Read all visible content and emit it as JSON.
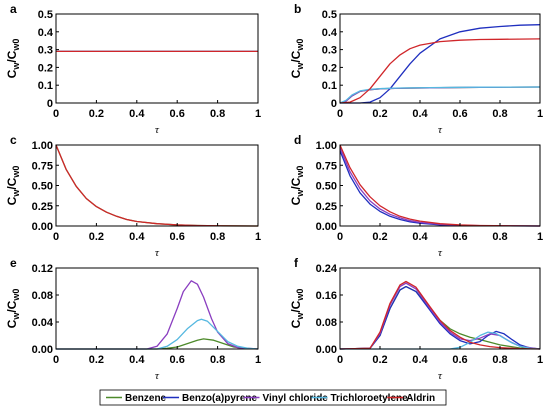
{
  "figure": {
    "legend": {
      "placement": "bottom",
      "entries": [
        {
          "name": "Benzene",
          "color": "#4d8a2a"
        },
        {
          "name": "Benzo(a)pyrene",
          "color": "#1f2fbf"
        },
        {
          "name": "Vinyl chloride",
          "color": "#8a3ec0"
        },
        {
          "name": "Trichloroetylene",
          "color": "#55b8e0"
        },
        {
          "name": "Aldrin",
          "color": "#d0262a"
        }
      ]
    }
  },
  "chart_data": [
    {
      "panel": "a",
      "type": "line",
      "xlabel": "τ",
      "ylabel_main": "C",
      "ylabel_num_sub": "w",
      "ylabel_den_main": "C",
      "ylabel_den_sub": "w0",
      "xlim": [
        0,
        1
      ],
      "ylim": [
        0,
        0.5
      ],
      "xticks": [
        "0",
        "0.2",
        "0.4",
        "0.6",
        "0.8",
        "1"
      ],
      "yticks": [
        {
          "v": 0,
          "l": "0"
        },
        {
          "v": 0.1,
          "l": "0.1"
        },
        {
          "v": 0.2,
          "l": "0.2"
        },
        {
          "v": 0.3,
          "l": "0.3"
        },
        {
          "v": 0.4,
          "l": "0.4"
        },
        {
          "v": 0.5,
          "l": "0.5"
        }
      ],
      "series": [
        {
          "name": "Benzene",
          "x": [
            0,
            1
          ],
          "y": [
            0.29,
            0.29
          ]
        },
        {
          "name": "Benzo(a)pyrene",
          "x": [
            0,
            1
          ],
          "y": [
            0.29,
            0.29
          ]
        },
        {
          "name": "Vinyl chloride",
          "x": [
            0,
            1
          ],
          "y": [
            0.29,
            0.29
          ]
        },
        {
          "name": "Trichloroetylene",
          "x": [
            0,
            1
          ],
          "y": [
            0.29,
            0.29
          ]
        },
        {
          "name": "Aldrin",
          "x": [
            0,
            1
          ],
          "y": [
            0.29,
            0.29
          ]
        }
      ]
    },
    {
      "panel": "b",
      "type": "line",
      "xlabel": "τ",
      "ylabel_main": "C",
      "ylabel_num_sub": "w",
      "ylabel_den_main": "C",
      "ylabel_den_sub": "w0",
      "xlim": [
        0,
        1
      ],
      "ylim": [
        0,
        0.5
      ],
      "xticks": [
        "0",
        "0.2",
        "0.4",
        "0.6",
        "0.8",
        "1"
      ],
      "yticks": [
        {
          "v": 0,
          "l": "0"
        },
        {
          "v": 0.1,
          "l": "0.1"
        },
        {
          "v": 0.2,
          "l": "0.2"
        },
        {
          "v": 0.3,
          "l": "0.3"
        },
        {
          "v": 0.4,
          "l": "0.4"
        },
        {
          "v": 0.5,
          "l": "0.5"
        }
      ],
      "series": [
        {
          "name": "Benzene",
          "x": [
            0,
            0.03,
            0.06,
            0.1,
            0.15,
            0.2,
            0.3,
            0.5,
            0.7,
            1
          ],
          "y": [
            0,
            0.01,
            0.04,
            0.065,
            0.075,
            0.08,
            0.083,
            0.086,
            0.088,
            0.09
          ]
        },
        {
          "name": "Benzo(a)pyrene",
          "x": [
            0,
            0.1,
            0.15,
            0.2,
            0.25,
            0.3,
            0.35,
            0.4,
            0.5,
            0.6,
            0.7,
            0.8,
            0.9,
            1
          ],
          "y": [
            0,
            0,
            0.005,
            0.03,
            0.08,
            0.15,
            0.22,
            0.28,
            0.36,
            0.4,
            0.42,
            0.43,
            0.437,
            0.44
          ]
        },
        {
          "name": "Vinyl chloride",
          "x": [
            0,
            0.03,
            0.06,
            0.1,
            0.15,
            0.2,
            0.3,
            0.5,
            0.7,
            1
          ],
          "y": [
            0,
            0.01,
            0.04,
            0.065,
            0.075,
            0.08,
            0.083,
            0.086,
            0.088,
            0.09
          ]
        },
        {
          "name": "Trichloroetylene",
          "x": [
            0,
            0.03,
            0.06,
            0.1,
            0.15,
            0.2,
            0.3,
            0.5,
            0.7,
            1
          ],
          "y": [
            0,
            0.015,
            0.045,
            0.068,
            0.077,
            0.081,
            0.084,
            0.087,
            0.089,
            0.09
          ]
        },
        {
          "name": "Aldrin",
          "x": [
            0,
            0.05,
            0.1,
            0.15,
            0.2,
            0.25,
            0.3,
            0.35,
            0.4,
            0.5,
            0.6,
            0.7,
            0.8,
            1
          ],
          "y": [
            0,
            0.005,
            0.03,
            0.08,
            0.15,
            0.22,
            0.27,
            0.305,
            0.325,
            0.345,
            0.353,
            0.357,
            0.358,
            0.36
          ]
        }
      ]
    },
    {
      "panel": "c",
      "type": "line",
      "xlabel": "τ",
      "ylabel_main": "C",
      "ylabel_num_sub": "w",
      "ylabel_den_main": "C",
      "ylabel_den_sub": "w0",
      "xlim": [
        0,
        1
      ],
      "ylim": [
        0,
        1
      ],
      "xticks": [
        "0",
        "0.2",
        "0.4",
        "0.6",
        "0.8",
        "1"
      ],
      "yticks": [
        {
          "v": 0,
          "l": "0.00"
        },
        {
          "v": 0.25,
          "l": "0.25"
        },
        {
          "v": 0.5,
          "l": "0.50"
        },
        {
          "v": 0.75,
          "l": "0.75"
        },
        {
          "v": 1,
          "l": "1.00"
        }
      ],
      "series": [
        {
          "name": "Benzene",
          "x": [
            0,
            0.05,
            0.1,
            0.15,
            0.2,
            0.25,
            0.3,
            0.35,
            0.4,
            0.5,
            0.6,
            0.7,
            0.8,
            1
          ],
          "y": [
            1,
            0.7,
            0.49,
            0.34,
            0.24,
            0.17,
            0.12,
            0.08,
            0.056,
            0.028,
            0.013,
            0.006,
            0.003,
            0
          ]
        },
        {
          "name": "Aldrin",
          "x": [
            0,
            0.05,
            0.1,
            0.15,
            0.2,
            0.25,
            0.3,
            0.35,
            0.4,
            0.5,
            0.6,
            0.7,
            0.8,
            1
          ],
          "y": [
            1,
            0.7,
            0.49,
            0.34,
            0.24,
            0.17,
            0.12,
            0.08,
            0.056,
            0.028,
            0.013,
            0.006,
            0.003,
            0
          ]
        }
      ]
    },
    {
      "panel": "d",
      "type": "line",
      "xlabel": "τ",
      "ylabel_main": "C",
      "ylabel_num_sub": "w",
      "ylabel_den_main": "C",
      "ylabel_den_sub": "w0",
      "xlim": [
        0,
        1
      ],
      "ylim": [
        0,
        1
      ],
      "xticks": [
        "0",
        "0.2",
        "0.4",
        "0.6",
        "0.8",
        "1"
      ],
      "yticks": [
        {
          "v": 0,
          "l": "0.00"
        },
        {
          "v": 0.25,
          "l": "0.25"
        },
        {
          "v": 0.5,
          "l": "0.50"
        },
        {
          "v": 0.75,
          "l": "0.75"
        },
        {
          "v": 1,
          "l": "1.00"
        }
      ],
      "series": [
        {
          "name": "Benzo(a)pyrene",
          "x": [
            0,
            0.05,
            0.1,
            0.15,
            0.2,
            0.25,
            0.3,
            0.35,
            0.4,
            0.5,
            0.6,
            0.7,
            1
          ],
          "y": [
            0.93,
            0.62,
            0.41,
            0.27,
            0.18,
            0.12,
            0.08,
            0.05,
            0.034,
            0.015,
            0.006,
            0.002,
            0
          ]
        },
        {
          "name": "Vinyl chloride",
          "x": [
            0,
            0.05,
            0.1,
            0.15,
            0.2,
            0.25,
            0.3,
            0.35,
            0.4,
            0.5,
            0.6,
            0.7,
            1
          ],
          "y": [
            0.97,
            0.67,
            0.46,
            0.31,
            0.21,
            0.145,
            0.1,
            0.066,
            0.045,
            0.02,
            0.009,
            0.004,
            0
          ]
        },
        {
          "name": "Aldrin",
          "x": [
            0,
            0.05,
            0.1,
            0.15,
            0.2,
            0.25,
            0.3,
            0.35,
            0.4,
            0.5,
            0.6,
            0.7,
            1
          ],
          "y": [
            1,
            0.72,
            0.51,
            0.36,
            0.25,
            0.175,
            0.12,
            0.085,
            0.06,
            0.028,
            0.013,
            0.006,
            0
          ]
        }
      ]
    },
    {
      "panel": "e",
      "type": "line",
      "xlabel": "τ",
      "ylabel_main": "C",
      "ylabel_num_sub": "w",
      "ylabel_den_main": "C",
      "ylabel_den_sub": "w0",
      "xlim": [
        0,
        1
      ],
      "ylim": [
        0,
        0.12
      ],
      "xticks": [
        "0",
        "0.2",
        "0.4",
        "0.6",
        "0.8",
        "1"
      ],
      "yticks": [
        {
          "v": 0,
          "l": "0.00"
        },
        {
          "v": 0.04,
          "l": "0.04"
        },
        {
          "v": 0.08,
          "l": "0.08"
        },
        {
          "v": 0.12,
          "l": "0.12"
        }
      ],
      "series": [
        {
          "name": "Benzene",
          "x": [
            0,
            0.5,
            0.55,
            0.6,
            0.65,
            0.7,
            0.73,
            0.78,
            0.83,
            0.88,
            0.93,
            1
          ],
          "y": [
            0,
            0,
            0.001,
            0.003,
            0.008,
            0.013,
            0.015,
            0.013,
            0.008,
            0.003,
            0.001,
            0
          ]
        },
        {
          "name": "Vinyl chloride",
          "x": [
            0,
            0.45,
            0.5,
            0.55,
            0.6,
            0.63,
            0.67,
            0.7,
            0.73,
            0.77,
            0.8,
            0.85,
            0.9,
            1
          ],
          "y": [
            0,
            0,
            0.004,
            0.022,
            0.06,
            0.085,
            0.101,
            0.096,
            0.077,
            0.045,
            0.025,
            0.008,
            0.002,
            0
          ]
        },
        {
          "name": "Trichloroetylene",
          "x": [
            0,
            0.5,
            0.55,
            0.6,
            0.65,
            0.7,
            0.72,
            0.75,
            0.8,
            0.85,
            0.9,
            0.95,
            1
          ],
          "y": [
            0,
            0,
            0.004,
            0.014,
            0.03,
            0.042,
            0.044,
            0.041,
            0.026,
            0.011,
            0.004,
            0.001,
            0
          ]
        }
      ]
    },
    {
      "panel": "f",
      "type": "line",
      "xlabel": "τ",
      "ylabel_main": "C",
      "ylabel_num_sub": "w",
      "ylabel_den_main": "C",
      "ylabel_den_sub": "w0",
      "xlim": [
        0,
        1
      ],
      "ylim": [
        0,
        0.24
      ],
      "xticks": [
        "0",
        "0.2",
        "0.4",
        "0.6",
        "0.8",
        "1"
      ],
      "yticks": [
        {
          "v": 0,
          "l": "0.00"
        },
        {
          "v": 0.08,
          "l": "0.08"
        },
        {
          "v": 0.16,
          "l": "0.16"
        },
        {
          "v": 0.24,
          "l": "0.24"
        }
      ],
      "series": [
        {
          "name": "Benzene",
          "x": [
            0,
            0.15,
            0.2,
            0.25,
            0.3,
            0.33,
            0.38,
            0.45,
            0.5,
            0.55,
            0.6,
            0.65,
            0.7,
            0.75,
            0.8,
            0.9,
            1
          ],
          "y": [
            0,
            0.002,
            0.04,
            0.12,
            0.175,
            0.185,
            0.17,
            0.12,
            0.085,
            0.06,
            0.045,
            0.035,
            0.028,
            0.02,
            0.012,
            0.003,
            0
          ]
        },
        {
          "name": "Benzo(a)pyrene",
          "x": [
            0,
            0.15,
            0.2,
            0.25,
            0.3,
            0.33,
            0.38,
            0.45,
            0.5,
            0.55,
            0.6,
            0.65,
            0.7,
            0.74,
            0.78,
            0.82,
            0.86,
            0.9,
            0.95,
            1
          ],
          "y": [
            0,
            0.002,
            0.04,
            0.12,
            0.175,
            0.185,
            0.17,
            0.115,
            0.075,
            0.045,
            0.025,
            0.015,
            0.022,
            0.04,
            0.052,
            0.045,
            0.028,
            0.012,
            0.003,
            0
          ]
        },
        {
          "name": "Vinyl chloride",
          "x": [
            0,
            0.15,
            0.2,
            0.25,
            0.3,
            0.33,
            0.38,
            0.45,
            0.5,
            0.55,
            0.6,
            0.65,
            0.7,
            0.75,
            0.8,
            0.85,
            0.9,
            1
          ],
          "y": [
            0,
            0.002,
            0.045,
            0.13,
            0.185,
            0.195,
            0.178,
            0.12,
            0.08,
            0.05,
            0.03,
            0.025,
            0.032,
            0.045,
            0.04,
            0.022,
            0.008,
            0
          ]
        },
        {
          "name": "Trichloroetylene",
          "x": [
            0,
            0.55,
            0.6,
            0.65,
            0.7,
            0.74,
            0.78,
            0.82,
            0.86,
            0.9,
            0.95,
            1
          ],
          "y": [
            0,
            0,
            0.005,
            0.02,
            0.04,
            0.05,
            0.046,
            0.032,
            0.018,
            0.008,
            0.002,
            0
          ]
        },
        {
          "name": "Aldrin",
          "x": [
            0,
            0.15,
            0.2,
            0.25,
            0.3,
            0.33,
            0.38,
            0.45,
            0.5,
            0.55,
            0.6,
            0.65,
            0.7,
            0.75,
            0.8,
            0.9,
            1
          ],
          "y": [
            0,
            0.002,
            0.05,
            0.135,
            0.19,
            0.2,
            0.183,
            0.125,
            0.085,
            0.055,
            0.035,
            0.02,
            0.012,
            0.007,
            0.004,
            0.001,
            0
          ]
        }
      ]
    }
  ]
}
